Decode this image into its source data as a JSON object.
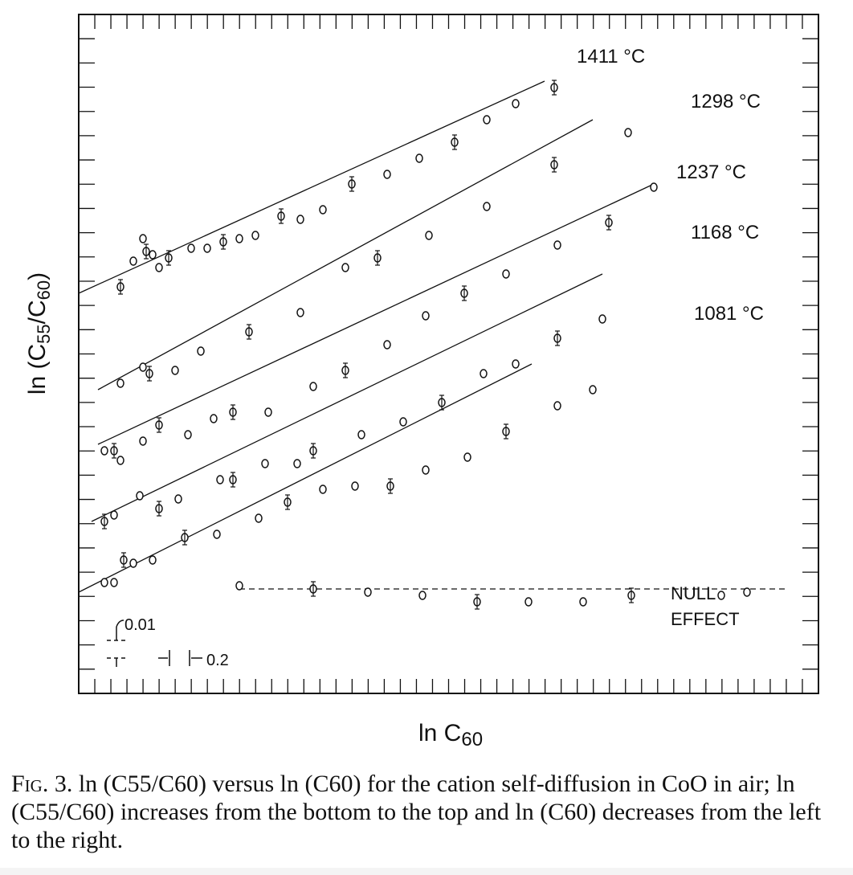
{
  "chart_data": {
    "type": "scatter",
    "xlabel": "ln C60",
    "ylabel": "ln (C55/C60)",
    "ticks": {
      "x_count": 46,
      "y_count": 28
    },
    "series": [
      {
        "name": "1411 °C",
        "points": [
          [
            1.3,
            10.4
          ],
          [
            1.7,
            11.2
          ],
          [
            2.0,
            11.9
          ],
          [
            2.1,
            11.5
          ],
          [
            2.3,
            11.4
          ],
          [
            2.5,
            11.0
          ],
          [
            2.8,
            11.3
          ],
          [
            3.5,
            11.6
          ],
          [
            4.0,
            11.6
          ],
          [
            4.5,
            11.8
          ],
          [
            5.0,
            11.9
          ],
          [
            5.5,
            12.0
          ],
          [
            6.3,
            12.6
          ],
          [
            6.9,
            12.5
          ],
          [
            7.6,
            12.8
          ],
          [
            8.5,
            13.6
          ],
          [
            9.6,
            13.9
          ],
          [
            10.6,
            14.4
          ],
          [
            11.7,
            14.9
          ],
          [
            12.7,
            15.6
          ],
          [
            13.6,
            16.1
          ],
          [
            14.8,
            16.6
          ]
        ],
        "fit": [
          [
            0,
            10.2
          ],
          [
            14.5,
            16.8
          ]
        ]
      },
      {
        "name": "1298 °C",
        "points": [
          [
            1.3,
            7.4
          ],
          [
            2.0,
            7.9
          ],
          [
            2.2,
            7.7
          ],
          [
            3.0,
            7.8
          ],
          [
            3.8,
            8.4
          ],
          [
            5.3,
            9.0
          ],
          [
            6.9,
            9.6
          ],
          [
            8.3,
            11.0
          ],
          [
            9.3,
            11.3
          ],
          [
            10.9,
            12.0
          ],
          [
            12.7,
            12.9
          ],
          [
            14.8,
            14.2
          ],
          [
            17.1,
            15.2
          ]
        ],
        "fit": [
          [
            0.6,
            7.2
          ],
          [
            16.0,
            15.6
          ]
        ]
      },
      {
        "name": "1237 °C",
        "points": [
          [
            0.8,
            5.3
          ],
          [
            1.1,
            5.3
          ],
          [
            1.3,
            5.0
          ],
          [
            2.0,
            5.6
          ],
          [
            2.5,
            6.1
          ],
          [
            3.4,
            5.8
          ],
          [
            4.2,
            6.3
          ],
          [
            4.8,
            6.5
          ],
          [
            5.9,
            6.5
          ],
          [
            7.3,
            7.3
          ],
          [
            8.3,
            7.8
          ],
          [
            9.6,
            8.6
          ],
          [
            10.8,
            9.5
          ],
          [
            12.0,
            10.2
          ],
          [
            13.3,
            10.8
          ],
          [
            14.9,
            11.7
          ],
          [
            16.5,
            12.4
          ],
          [
            17.9,
            13.5
          ]
        ],
        "fit": [
          [
            0.6,
            5.5
          ],
          [
            17.9,
            13.6
          ]
        ]
      },
      {
        "name": "1168 °C",
        "points": [
          [
            0.8,
            3.1
          ],
          [
            1.1,
            3.3
          ],
          [
            1.9,
            3.9
          ],
          [
            2.5,
            3.5
          ],
          [
            3.1,
            3.8
          ],
          [
            4.4,
            4.4
          ],
          [
            4.8,
            4.4
          ],
          [
            5.8,
            4.9
          ],
          [
            6.8,
            4.9
          ],
          [
            7.3,
            5.3
          ],
          [
            8.8,
            5.8
          ],
          [
            10.1,
            6.2
          ],
          [
            11.3,
            6.8
          ],
          [
            12.6,
            7.7
          ],
          [
            13.6,
            8.0
          ],
          [
            14.9,
            8.8
          ],
          [
            16.3,
            9.4
          ]
        ],
        "fit": [
          [
            0.4,
            3.1
          ],
          [
            16.3,
            10.8
          ]
        ]
      },
      {
        "name": "1081 °C",
        "points": [
          [
            0.8,
            1.2
          ],
          [
            1.1,
            1.2
          ],
          [
            1.4,
            1.9
          ],
          [
            1.7,
            1.8
          ],
          [
            2.3,
            1.9
          ],
          [
            3.3,
            2.6
          ],
          [
            4.3,
            2.7
          ],
          [
            5.6,
            3.2
          ],
          [
            6.5,
            3.7
          ],
          [
            7.6,
            4.1
          ],
          [
            8.6,
            4.2
          ],
          [
            9.7,
            4.2
          ],
          [
            10.8,
            4.7
          ],
          [
            12.1,
            5.1
          ],
          [
            13.3,
            5.9
          ],
          [
            14.9,
            6.7
          ],
          [
            16.0,
            7.2
          ]
        ],
        "fit": [
          [
            0.0,
            0.9
          ],
          [
            14.1,
            8.0
          ]
        ]
      },
      {
        "name": "NULL EFFECT",
        "points": [
          [
            5.0,
            1.1
          ],
          [
            7.3,
            1.0
          ],
          [
            9.0,
            0.9
          ],
          [
            10.7,
            0.8
          ],
          [
            12.4,
            0.6
          ],
          [
            14.0,
            0.6
          ],
          [
            15.7,
            0.6
          ],
          [
            17.2,
            0.8
          ],
          [
            20.0,
            0.8
          ],
          [
            20.8,
            0.9
          ]
        ],
        "fit": [
          [
            5.0,
            1.0
          ],
          [
            22.0,
            1.0
          ]
        ]
      }
    ],
    "labels": {
      "s1411": "1411 °C",
      "s1298": "1298 °C",
      "s1237": "1237 °C",
      "s1168": "1168 °C",
      "s1081": "1081 °C",
      "null1": "NULL",
      "null2": "EFFECT",
      "scale_y": "0.01",
      "scale_x": "0.2"
    }
  },
  "caption": {
    "fig": "Fig. 3.",
    "text": " ln (C55/C60) versus ln (C60) for the cation self-diffusion in CoO in air; ln (C55/C60) increases from the bottom to the top and ln (C60) decreases from the left to the right."
  }
}
